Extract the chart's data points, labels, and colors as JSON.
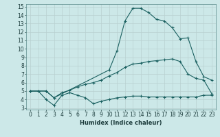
{
  "xlabel": "Humidex (Indice chaleur)",
  "xlim": [
    -0.5,
    23.5
  ],
  "ylim": [
    2.8,
    15.3
  ],
  "xticks": [
    0,
    1,
    2,
    3,
    4,
    5,
    6,
    7,
    8,
    9,
    10,
    11,
    12,
    13,
    14,
    15,
    16,
    17,
    18,
    19,
    20,
    21,
    22,
    23
  ],
  "yticks": [
    3,
    4,
    5,
    6,
    7,
    8,
    9,
    10,
    11,
    12,
    13,
    14,
    15
  ],
  "bg_color": "#cce8e8",
  "grid_color": "#b8d0d0",
  "line_color": "#1a6060",
  "series": [
    {
      "x": [
        0,
        1,
        2,
        3,
        4,
        5,
        6,
        7,
        8,
        9,
        10,
        11,
        12,
        13,
        14,
        15,
        16,
        17,
        18,
        19,
        20,
        21,
        22,
        23
      ],
      "y": [
        5.0,
        5.0,
        4.0,
        3.3,
        4.5,
        4.8,
        4.5,
        4.2,
        3.5,
        3.8,
        4.0,
        4.2,
        4.3,
        4.4,
        4.4,
        4.3,
        4.3,
        4.3,
        4.3,
        4.3,
        4.3,
        4.3,
        4.5,
        4.5
      ]
    },
    {
      "x": [
        0,
        1,
        2,
        3,
        4,
        5,
        6,
        7,
        8,
        9,
        10,
        11,
        12,
        13,
        14,
        15,
        16,
        17,
        18,
        19,
        20,
        21,
        22,
        23
      ],
      "y": [
        5.0,
        5.0,
        5.0,
        4.2,
        4.8,
        5.1,
        5.5,
        5.8,
        6.0,
        6.3,
        6.8,
        7.2,
        7.8,
        8.2,
        8.3,
        8.5,
        8.6,
        8.7,
        8.8,
        8.5,
        7.0,
        6.5,
        6.3,
        4.7
      ]
    },
    {
      "x": [
        0,
        2,
        3,
        10,
        11,
        12,
        13,
        14,
        15,
        16,
        17,
        18,
        19,
        20,
        21,
        22,
        23
      ],
      "y": [
        5.0,
        5.0,
        4.2,
        7.5,
        9.8,
        13.3,
        14.8,
        14.8,
        14.3,
        13.5,
        13.3,
        12.5,
        11.2,
        11.3,
        8.5,
        6.7,
        6.3
      ]
    }
  ]
}
